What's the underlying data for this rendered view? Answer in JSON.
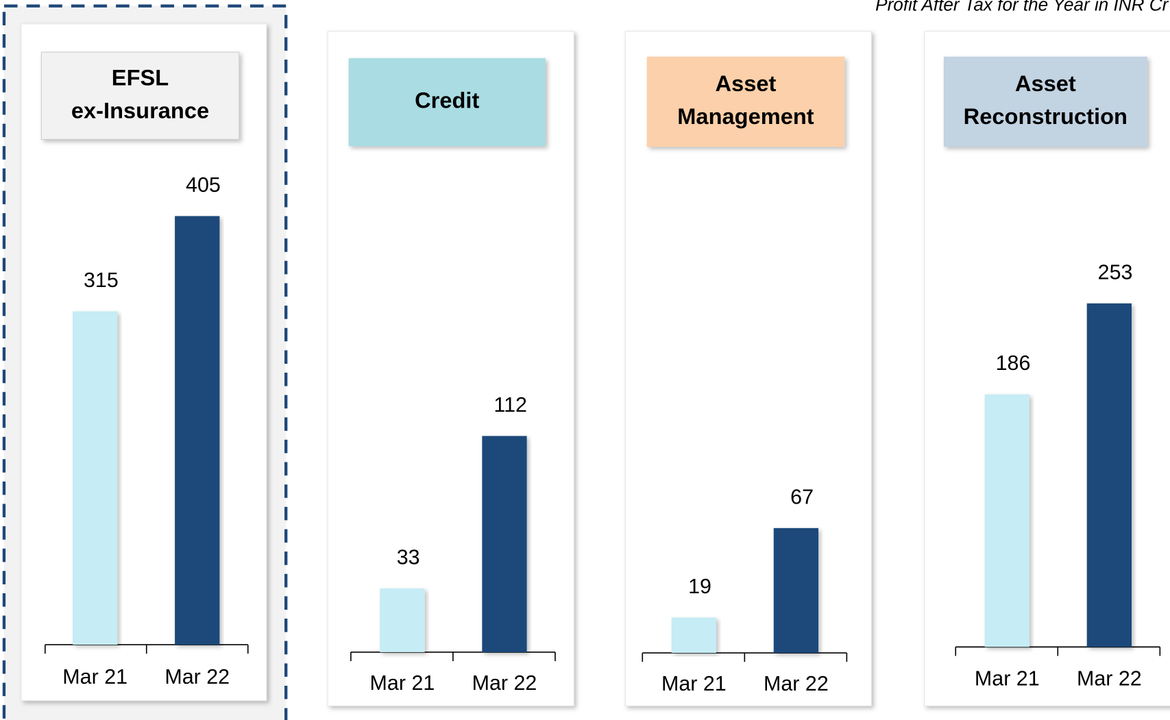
{
  "subtitle": "Profit After Tax for the Year in INR Cr",
  "chart_data": [
    {
      "type": "bar",
      "title": [
        "EFSL",
        "ex-Insurance"
      ],
      "title_color": "#f2f2f2",
      "highlighted": true,
      "categories": [
        "Mar 21",
        "Mar 22"
      ],
      "values": [
        315,
        405
      ],
      "colors": [
        "#c6ecf5",
        "#1f487a"
      ]
    },
    {
      "type": "bar",
      "title": [
        "Credit"
      ],
      "title_color": "#a9dce3",
      "categories": [
        "Mar 21",
        "Mar 22"
      ],
      "values": [
        33,
        112
      ],
      "colors": [
        "#c6ecf5",
        "#1f487a"
      ]
    },
    {
      "type": "bar",
      "title": [
        "Asset",
        "Management"
      ],
      "title_color": "#fbd0aa",
      "categories": [
        "Mar 21",
        "Mar 22"
      ],
      "values": [
        19,
        67
      ],
      "colors": [
        "#c6ecf5",
        "#1f487a"
      ]
    },
    {
      "type": "bar",
      "title": [
        "Asset",
        "Reconstruction"
      ],
      "title_color": "#c2d3e2",
      "categories": [
        "Mar 21",
        "Mar 22"
      ],
      "values": [
        186,
        253
      ],
      "colors": [
        "#c6ecf5",
        "#1f487a"
      ]
    }
  ]
}
